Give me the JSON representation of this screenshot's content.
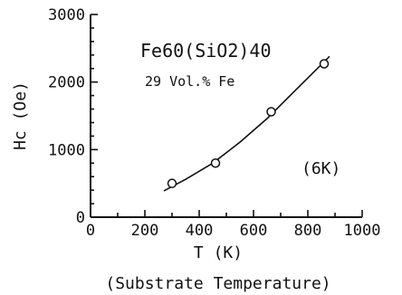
{
  "chart_data": {
    "type": "scatter",
    "title": "",
    "xlabel": "T (K)",
    "xlabel_note": "(Substrate Temperature)",
    "ylabel": "Hc (Oe)",
    "xlim": [
      0,
      1000
    ],
    "ylim": [
      0,
      3000
    ],
    "xticks": [
      0,
      200,
      400,
      600,
      800,
      1000
    ],
    "yticks": [
      0,
      1000,
      2000,
      3000
    ],
    "grid": false,
    "annotations": {
      "material": "Fe60(SiO2)40",
      "composition": "29 Vol.% Fe",
      "measurement": "(6K)"
    },
    "series": [
      {
        "points": [
          {
            "x": 300,
            "y": 500
          },
          {
            "x": 460,
            "y": 800
          },
          {
            "x": 665,
            "y": 1560
          },
          {
            "x": 860,
            "y": 2270
          }
        ],
        "fit_curve": [
          {
            "x": 270,
            "y": 390
          },
          {
            "x": 350,
            "y": 560
          },
          {
            "x": 450,
            "y": 800
          },
          {
            "x": 550,
            "y": 1110
          },
          {
            "x": 650,
            "y": 1460
          },
          {
            "x": 750,
            "y": 1860
          },
          {
            "x": 820,
            "y": 2140
          },
          {
            "x": 880,
            "y": 2380
          }
        ]
      }
    ]
  }
}
